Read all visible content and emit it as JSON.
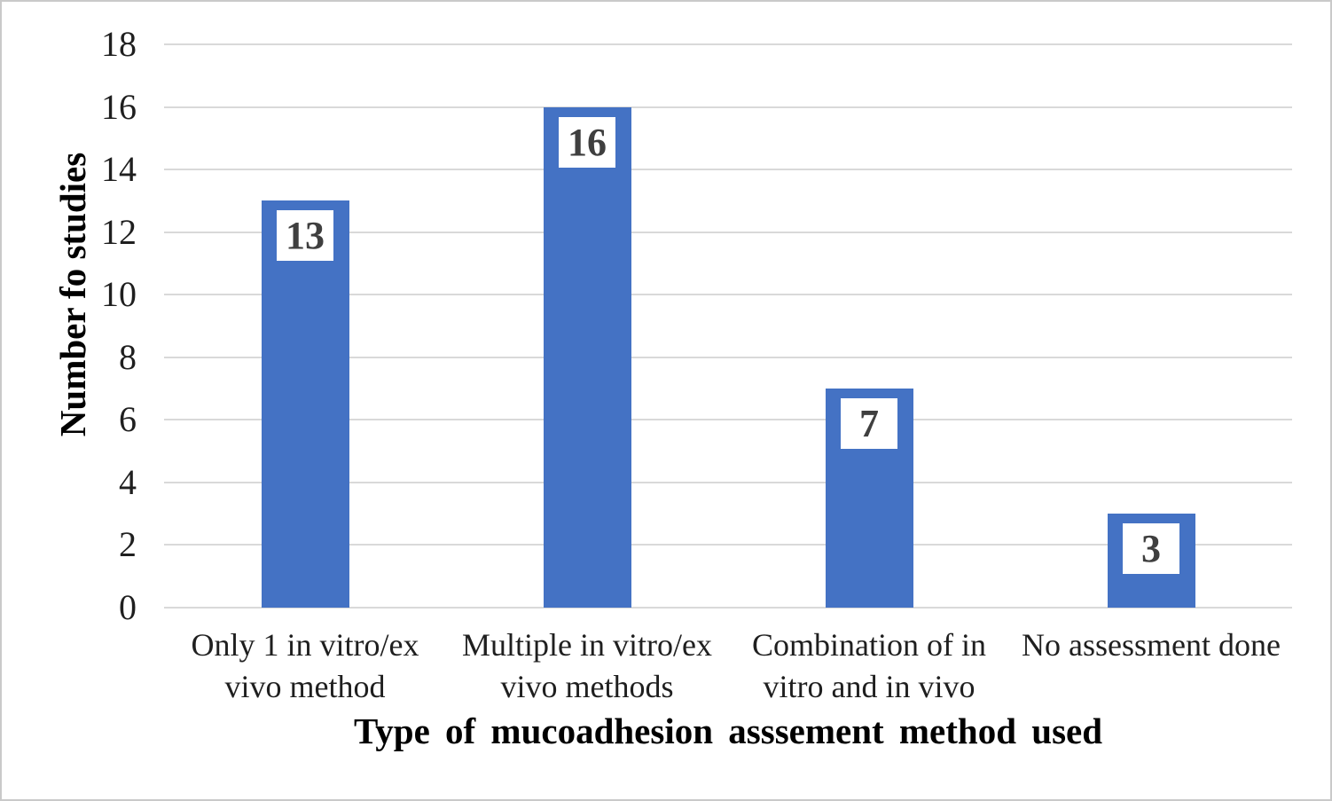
{
  "chart_data": {
    "type": "bar",
    "categories": [
      "Only 1 in vitro/ex vivo method",
      "Multiple in vitro/ex vivo methods",
      "Combination of in vitro and in vivo",
      "No assessment done"
    ],
    "category_lines": [
      [
        "Only 1 in vitro/ex",
        "vivo method"
      ],
      [
        "Multiple in vitro/ex",
        "vivo methods"
      ],
      [
        "Combination of in",
        "vitro and in vivo"
      ],
      [
        "No assessment done"
      ]
    ],
    "values": [
      13,
      16,
      7,
      3
    ],
    "data_labels": [
      "13",
      "16",
      "7",
      "3"
    ],
    "xlabel": "Type of mucoadhesion asssement method used",
    "ylabel": "Number fo studies",
    "ylim": [
      0,
      18
    ],
    "ytick_step": 2,
    "yticks": [
      0,
      2,
      4,
      6,
      8,
      10,
      12,
      14,
      16,
      18
    ],
    "grid": true,
    "legend": false,
    "colors": {
      "bar": "#4472C4",
      "gridline": "#D9D9D9",
      "data_label_text": "#3F3F3F",
      "data_label_bg": "#FFFFFF",
      "axis_text": "#1F1F1F",
      "figure_border": "#C9C9C9"
    }
  }
}
